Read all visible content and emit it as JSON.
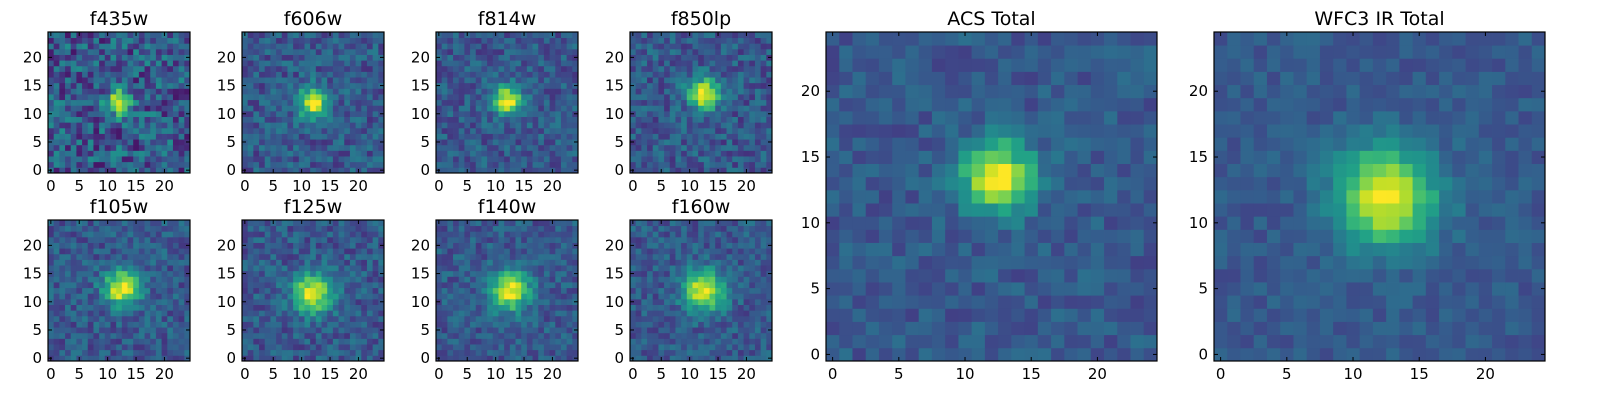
{
  "chart_data": [
    {
      "type": "heatmap",
      "title": "f435w",
      "xlim": [
        0,
        25
      ],
      "ylim": [
        0,
        25
      ],
      "x_ticks": [
        "0",
        "5",
        "10",
        "15",
        "20"
      ],
      "y_ticks": [
        "0",
        "5",
        "10",
        "15",
        "20"
      ],
      "colormap": "viridis",
      "peak": [
        12,
        12
      ],
      "sigma": 1.5,
      "noise": 0.22,
      "seed": 3
    },
    {
      "type": "heatmap",
      "title": "f606w",
      "xlim": [
        0,
        25
      ],
      "ylim": [
        0,
        25
      ],
      "x_ticks": [
        "0",
        "5",
        "10",
        "15",
        "20"
      ],
      "y_ticks": [
        "0",
        "5",
        "10",
        "15",
        "20"
      ],
      "colormap": "viridis",
      "peak": [
        12,
        12
      ],
      "sigma": 1.8,
      "noise": 0.14,
      "seed": 7
    },
    {
      "type": "heatmap",
      "title": "f814w",
      "xlim": [
        0,
        25
      ],
      "ylim": [
        0,
        25
      ],
      "x_ticks": [
        "0",
        "5",
        "10",
        "15",
        "20"
      ],
      "y_ticks": [
        "0",
        "5",
        "10",
        "15",
        "20"
      ],
      "colormap": "viridis",
      "peak": [
        12,
        12.5
      ],
      "sigma": 1.8,
      "noise": 0.13,
      "seed": 11
    },
    {
      "type": "heatmap",
      "title": "f850lp",
      "xlim": [
        0,
        25
      ],
      "ylim": [
        0,
        25
      ],
      "x_ticks": [
        "0",
        "5",
        "10",
        "15",
        "20"
      ],
      "y_ticks": [
        "0",
        "5",
        "10",
        "15",
        "20"
      ],
      "colormap": "viridis",
      "peak": [
        12.5,
        13.5
      ],
      "sigma": 1.9,
      "noise": 0.14,
      "seed": 15
    },
    {
      "type": "heatmap",
      "title": "f105w",
      "xlim": [
        0,
        25
      ],
      "ylim": [
        0,
        25
      ],
      "x_ticks": [
        "0",
        "5",
        "10",
        "15",
        "20"
      ],
      "y_ticks": [
        "0",
        "5",
        "10",
        "15",
        "20"
      ],
      "colormap": "viridis",
      "peak": [
        12.5,
        12.5
      ],
      "sigma": 2.2,
      "noise": 0.13,
      "seed": 19
    },
    {
      "type": "heatmap",
      "title": "f125w",
      "xlim": [
        0,
        25
      ],
      "ylim": [
        0,
        25
      ],
      "x_ticks": [
        "0",
        "5",
        "10",
        "15",
        "20"
      ],
      "y_ticks": [
        "0",
        "5",
        "10",
        "15",
        "20"
      ],
      "colormap": "viridis",
      "peak": [
        12,
        11.5
      ],
      "sigma": 2.4,
      "noise": 0.13,
      "seed": 23
    },
    {
      "type": "heatmap",
      "title": "f140w",
      "xlim": [
        0,
        25
      ],
      "ylim": [
        0,
        25
      ],
      "x_ticks": [
        "0",
        "5",
        "10",
        "15",
        "20"
      ],
      "y_ticks": [
        "0",
        "5",
        "10",
        "15",
        "20"
      ],
      "colormap": "viridis",
      "peak": [
        12.5,
        12
      ],
      "sigma": 2.4,
      "noise": 0.12,
      "seed": 29
    },
    {
      "type": "heatmap",
      "title": "f160w",
      "xlim": [
        0,
        25
      ],
      "ylim": [
        0,
        25
      ],
      "x_ticks": [
        "0",
        "5",
        "10",
        "15",
        "20"
      ],
      "y_ticks": [
        "0",
        "5",
        "10",
        "15",
        "20"
      ],
      "colormap": "viridis",
      "peak": [
        12.5,
        12
      ],
      "sigma": 2.5,
      "noise": 0.12,
      "seed": 31
    },
    {
      "type": "heatmap",
      "title": "ACS Total",
      "xlim": [
        0,
        25
      ],
      "ylim": [
        0,
        25
      ],
      "x_ticks": [
        "0",
        "5",
        "10",
        "15",
        "20"
      ],
      "y_ticks": [
        "0",
        "5",
        "10",
        "15",
        "20"
      ],
      "colormap": "viridis",
      "peak": [
        12.5,
        13.5
      ],
      "sigma": 1.9,
      "noise": 0.09,
      "seed": 37
    },
    {
      "type": "heatmap",
      "title": "WFC3 IR Total",
      "xlim": [
        0,
        25
      ],
      "ylim": [
        0,
        25
      ],
      "x_ticks": [
        "0",
        "5",
        "10",
        "15",
        "20"
      ],
      "y_ticks": [
        "0",
        "5",
        "10",
        "15",
        "20"
      ],
      "colormap": "viridis",
      "peak": [
        12.5,
        12
      ],
      "sigma": 2.6,
      "noise": 0.07,
      "seed": 41
    }
  ]
}
